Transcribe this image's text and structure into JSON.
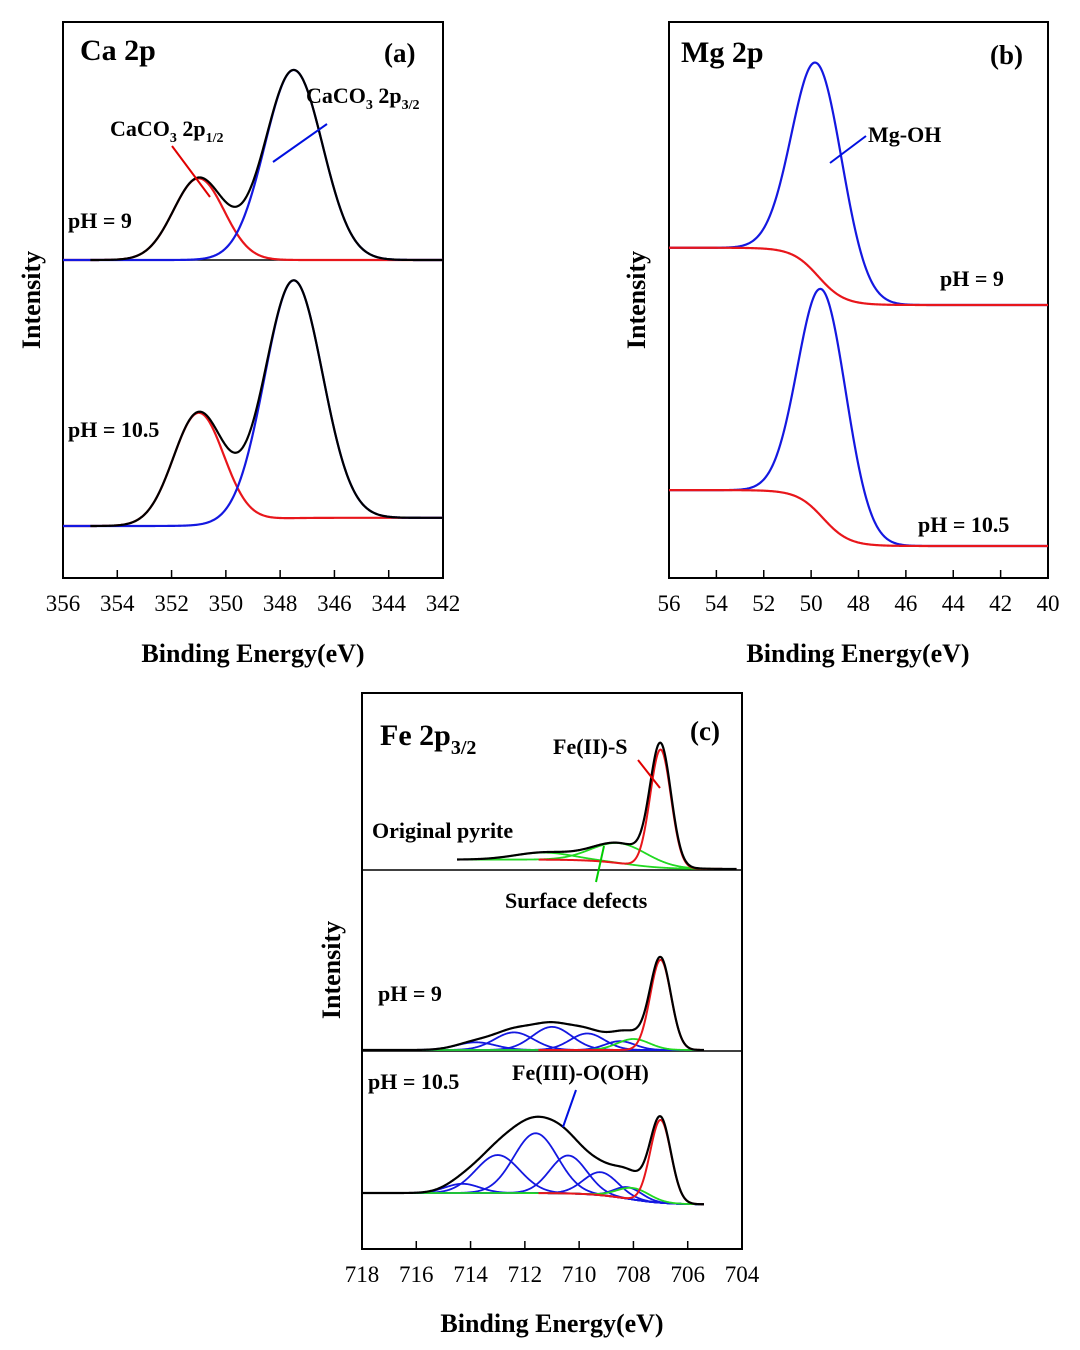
{
  "chart_data": [
    {
      "panel": "a",
      "type": "line",
      "title": "Ca 2p",
      "panel_label": "(a)",
      "xlabel": "Binding Energy(eV)",
      "ylabel": "Intensity",
      "xlim": [
        356,
        342
      ],
      "x_reversed": true,
      "xticks": [
        356,
        354,
        352,
        350,
        348,
        346,
        344,
        342
      ],
      "x_tick_labels": [
        "356",
        "354",
        "352",
        "350",
        "348",
        "346",
        "344",
        "342"
      ],
      "peak_labels": [
        {
          "prefix": "CaCO",
          "sub1": "3",
          "mid": " 2p",
          "sub2": "1/2",
          "near_eV": 351.0,
          "color": "#e00000"
        },
        {
          "prefix": "CaCO",
          "sub1": "3",
          "mid": " 2p",
          "sub2": "3/2",
          "near_eV": 347.5,
          "color": "#0010e0"
        }
      ],
      "series": [
        {
          "name": "pH = 9",
          "baseline_left": 0.0,
          "baseline_right": 0.0,
          "peaks": [
            {
              "component": "CaCO3 2p1/2",
              "center_eV": 351.0,
              "height": 0.43,
              "fwhm_eV": 2.2,
              "color": "red"
            },
            {
              "component": "CaCO3 2p3/2",
              "center_eV": 347.5,
              "height": 1.0,
              "fwhm_eV": 2.5,
              "color": "blue"
            }
          ],
          "envelope_color": "black"
        },
        {
          "name": "pH = 10.5",
          "baseline_left": 0.0,
          "baseline_right": 0.04,
          "peaks": [
            {
              "component": "CaCO3 2p1/2",
              "center_eV": 351.0,
              "height": 0.55,
              "fwhm_eV": 2.2,
              "color": "red"
            },
            {
              "component": "CaCO3 2p3/2",
              "center_eV": 347.5,
              "height": 1.16,
              "fwhm_eV": 2.5,
              "color": "blue"
            }
          ],
          "envelope_color": "black"
        }
      ]
    },
    {
      "panel": "b",
      "type": "line",
      "title": "Mg 2p",
      "panel_label": "(b)",
      "xlabel": "Binding Energy(eV)",
      "ylabel": "Intensity",
      "xlim": [
        56,
        40
      ],
      "x_reversed": true,
      "xticks": [
        56,
        54,
        52,
        50,
        48,
        46,
        44,
        42,
        40
      ],
      "x_tick_labels": [
        "56",
        "54",
        "52",
        "50",
        "48",
        "46",
        "44",
        "42",
        "40"
      ],
      "peak_labels": [
        {
          "text": "Mg-OH",
          "near_eV": 49.7,
          "color": "#0010e0"
        }
      ],
      "series": [
        {
          "name": "pH = 9",
          "baseline_left": 0.27,
          "baseline_right": 0.0,
          "peaks": [
            {
              "component": "Mg-OH",
              "center_eV": 49.7,
              "height": 1.0,
              "fwhm_eV": 2.5,
              "color": "blue"
            }
          ],
          "baseline_color": "red"
        },
        {
          "name": "pH = 10.5",
          "baseline_left": 0.27,
          "baseline_right": 0.0,
          "peaks": [
            {
              "component": "Mg-OH",
              "center_eV": 49.5,
              "height": 1.1,
              "fwhm_eV": 2.4,
              "color": "blue"
            }
          ],
          "baseline_color": "red"
        }
      ]
    },
    {
      "panel": "c",
      "type": "line",
      "title_main": "Fe 2p",
      "title_sub": "3/2",
      "panel_label": "(c)",
      "xlabel": "Binding Energy(eV)",
      "ylabel": "Intensity",
      "xlim": [
        718,
        704
      ],
      "x_reversed": true,
      "xticks": [
        718,
        716,
        714,
        712,
        710,
        708,
        706,
        704
      ],
      "x_tick_labels": [
        "718",
        "716",
        "714",
        "712",
        "710",
        "708",
        "706",
        "704"
      ],
      "peak_labels": [
        {
          "text": "Fe(II)-S",
          "near_eV": 707.0,
          "color": "#e00000"
        },
        {
          "text": "Surface defects",
          "near_eV": 708.5,
          "color": "#00cc00"
        },
        {
          "text": "Fe(III)-O(OH)",
          "near_eV": 710.5,
          "color": "#0010e0"
        }
      ],
      "series": [
        {
          "name": "Original pyrite",
          "baseline_left": 0.08,
          "baseline_right": 0.0,
          "fe2s": {
            "center_eV": 707.0,
            "height": 1.0,
            "fwhm_eV": 0.9
          },
          "defects": [
            {
              "center_eV": 708.5,
              "height": 0.17,
              "fwhm_eV": 2.4
            },
            {
              "center_eV": 711.3,
              "height": 0.06,
              "fwhm_eV": 2.5
            }
          ],
          "fe3": []
        },
        {
          "name": "pH = 9",
          "baseline_left": 0.0,
          "baseline_right": 0.0,
          "fe2s": {
            "center_eV": 707.0,
            "height": 0.82,
            "fwhm_eV": 0.9
          },
          "defects": [
            {
              "center_eV": 708.0,
              "height": 0.1,
              "fwhm_eV": 1.4
            }
          ],
          "fe3": [
            {
              "center_eV": 713.8,
              "height": 0.07,
              "fwhm_eV": 1.7
            },
            {
              "center_eV": 712.4,
              "height": 0.16,
              "fwhm_eV": 1.7
            },
            {
              "center_eV": 711.0,
              "height": 0.21,
              "fwhm_eV": 1.7
            },
            {
              "center_eV": 709.7,
              "height": 0.15,
              "fwhm_eV": 1.5
            },
            {
              "center_eV": 708.5,
              "height": 0.08,
              "fwhm_eV": 1.3
            }
          ]
        },
        {
          "name": "pH = 10.5",
          "baseline_left": 0.0,
          "baseline_right": -0.1,
          "fe2s": {
            "center_eV": 707.0,
            "height": 0.72,
            "fwhm_eV": 0.9
          },
          "defects": [
            {
              "center_eV": 708.0,
              "height": 0.1,
              "fwhm_eV": 1.4
            }
          ],
          "fe3": [
            {
              "center_eV": 714.3,
              "height": 0.08,
              "fwhm_eV": 1.5
            },
            {
              "center_eV": 713.0,
              "height": 0.33,
              "fwhm_eV": 1.9
            },
            {
              "center_eV": 711.6,
              "height": 0.52,
              "fwhm_eV": 1.9
            },
            {
              "center_eV": 710.4,
              "height": 0.33,
              "fwhm_eV": 1.6
            },
            {
              "center_eV": 709.2,
              "height": 0.2,
              "fwhm_eV": 1.5
            },
            {
              "center_eV": 708.2,
              "height": 0.1,
              "fwhm_eV": 1.2
            }
          ]
        }
      ]
    }
  ]
}
